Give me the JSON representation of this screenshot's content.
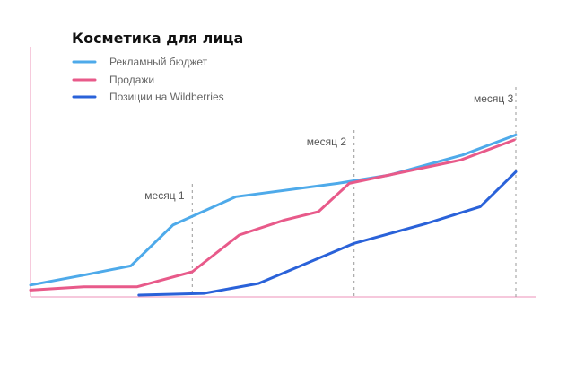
{
  "chart_data": {
    "type": "line",
    "title": "Косметика для лица",
    "xlabel": "",
    "ylabel": "",
    "grid": false,
    "legend_position": "top-left",
    "colors": {
      "axis": "#f0a6c6",
      "guide": "#9a9a9a",
      "series": [
        "#4eaaea",
        "#e85a8a",
        "#2a62d9"
      ]
    },
    "xlim": [
      0,
      3
    ],
    "ylim": [
      0,
      100
    ],
    "series": [
      {
        "name": "Рекламный бюджет",
        "color": "#4eaaea",
        "x": [
          0,
          0.33,
          0.62,
          0.88,
          1.27,
          1.9,
          2.22,
          2.67,
          3.0
        ],
        "y": [
          6,
          12,
          17.5,
          42,
          59,
          67,
          72,
          84,
          96
        ]
      },
      {
        "name": "Продажи",
        "color": "#e85a8a",
        "x": [
          0,
          0.33,
          0.66,
          1.0,
          1.29,
          1.57,
          1.78,
          1.97,
          2.66,
          2.99
        ],
        "y": [
          3,
          5,
          5,
          14,
          36,
          45,
          50,
          67,
          81,
          93
        ]
      },
      {
        "name": "Позиции на Wildberries",
        "color": "#2a62d9",
        "x": [
          0.67,
          1.07,
          1.41,
          2.0,
          2.45,
          2.78,
          3.0
        ],
        "y": [
          0,
          1,
          7,
          31,
          43,
          53,
          74
        ]
      }
    ],
    "annotations": [
      {
        "label": "месяц 1",
        "x": 1.0
      },
      {
        "label": "месяц 2",
        "x": 2.0
      },
      {
        "label": "месяц 3",
        "x": 3.0
      }
    ]
  }
}
